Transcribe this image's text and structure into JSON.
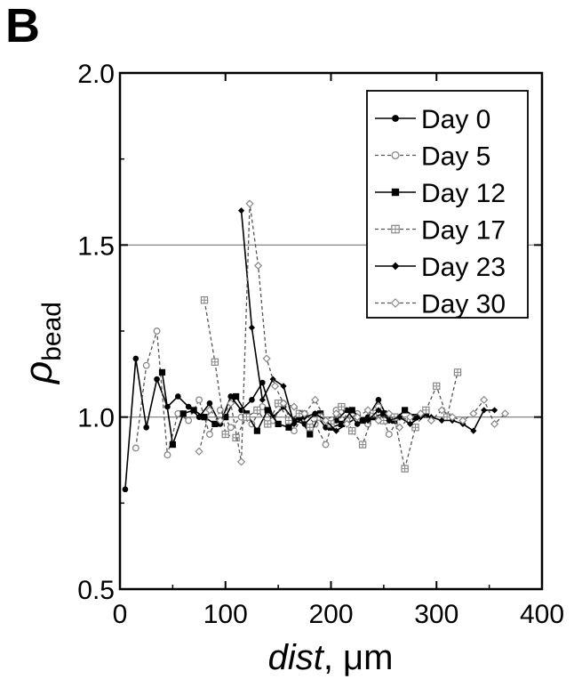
{
  "panel_label": "B",
  "chart_data": {
    "type": "line",
    "title": "",
    "xlabel_italic": "dist",
    "xlabel_suffix": ", μm",
    "ylabel_symbol": "ρ",
    "ylabel_subscript": "bead",
    "xlim": [
      0,
      400
    ],
    "ylim": [
      0.5,
      2.0
    ],
    "xticks": [
      0,
      100,
      200,
      300,
      400
    ],
    "yticks": [
      0.5,
      1.0,
      1.5,
      2.0
    ],
    "xtick_labels": [
      "0",
      "100",
      "200",
      "300",
      "400"
    ],
    "ytick_labels": [
      "0.5",
      "1.0",
      "1.5",
      "2.0"
    ],
    "reference_lines": [
      1.0,
      1.5
    ],
    "grid": false,
    "legend_position": "top-right",
    "series": [
      {
        "name": "Day 0",
        "marker": "filled-circle",
        "line": "solid",
        "x": [
          5,
          15,
          25,
          35,
          45,
          55,
          65,
          75,
          85,
          95,
          105,
          115,
          125,
          135,
          145,
          155,
          165,
          175,
          185,
          195,
          205,
          215,
          225,
          235,
          245,
          255,
          265
        ],
        "y": [
          0.79,
          1.17,
          0.97,
          1.11,
          1.03,
          1.06,
          1.03,
          1.0,
          1.04,
          0.98,
          1.06,
          1.02,
          1.05,
          1.1,
          1.0,
          1.03,
          0.99,
          0.98,
          1.01,
          0.97,
          0.99,
          1.02,
          0.98,
          1.0,
          1.05,
          0.99,
          1.0
        ]
      },
      {
        "name": "Day 5",
        "marker": "open-circle",
        "line": "dashed",
        "x": [
          15,
          25,
          35,
          45,
          55,
          65,
          75,
          85,
          95,
          105,
          115,
          125,
          135,
          145,
          155,
          165,
          175,
          185,
          195,
          205,
          215,
          225,
          235,
          245,
          255,
          265,
          275
        ],
        "y": [
          0.91,
          1.15,
          1.25,
          0.89,
          1.01,
          0.99,
          1.05,
          0.95,
          1.02,
          0.97,
          1.0,
          0.98,
          1.03,
          0.99,
          1.04,
          0.96,
          1.01,
          0.98,
          0.92,
          1.02,
          0.99,
          1.01,
          0.98,
          1.03,
          0.95,
          1.0,
          0.99
        ]
      },
      {
        "name": "Day 12",
        "marker": "filled-square",
        "line": "solid",
        "x": [
          40,
          50,
          60,
          70,
          80,
          90,
          100,
          110,
          120,
          130,
          140,
          150,
          160,
          170,
          180,
          190,
          200,
          210,
          220,
          230,
          240,
          250,
          260,
          270,
          280,
          290
        ],
        "y": [
          1.13,
          0.92,
          1.01,
          1.02,
          1.0,
          0.98,
          1.0,
          1.06,
          1.01,
          0.96,
          1.02,
          0.98,
          0.97,
          1.0,
          0.95,
          1.01,
          0.97,
          0.98,
          1.02,
          0.99,
          1.0,
          1.01,
          0.99,
          1.02,
          1.0,
          1.01
        ]
      },
      {
        "name": "Day 17",
        "marker": "open-square-cross",
        "line": "dashed",
        "x": [
          80,
          90,
          100,
          110,
          120,
          130,
          140,
          150,
          160,
          170,
          180,
          190,
          200,
          210,
          220,
          230,
          240,
          250,
          260,
          270,
          280,
          290,
          300,
          310,
          320
        ],
        "y": [
          1.34,
          1.16,
          0.95,
          0.94,
          1.0,
          1.02,
          0.98,
          1.04,
          0.99,
          1.01,
          0.97,
          1.0,
          0.98,
          1.03,
          0.96,
          0.92,
          1.01,
          0.99,
          1.0,
          0.85,
          0.97,
          1.02,
          1.09,
          1.0,
          1.13
        ]
      },
      {
        "name": "Day 23",
        "marker": "filled-diamond",
        "line": "solid",
        "x": [
          115,
          125,
          135,
          145,
          155,
          165,
          175,
          185,
          195,
          205,
          215,
          225,
          235,
          245,
          255,
          265,
          275,
          285,
          295,
          305,
          315,
          325,
          335,
          345,
          355
        ],
        "y": [
          1.6,
          1.26,
          1.05,
          1.11,
          1.09,
          0.98,
          1.0,
          1.01,
          0.99,
          0.96,
          0.98,
          1.0,
          0.99,
          1.02,
          0.99,
          1.0,
          0.98,
          1.0,
          1.0,
          0.99,
          0.99,
          0.98,
          0.96,
          1.02,
          1.02
        ]
      },
      {
        "name": "Day 30",
        "marker": "open-diamond",
        "line": "dashed",
        "x": [
          75,
          85,
          95,
          105,
          115,
          123,
          131,
          139,
          147,
          155,
          165,
          175,
          185,
          195,
          205,
          215,
          225,
          235,
          245,
          255,
          265,
          275,
          285,
          295,
          305,
          315,
          325,
          335,
          345,
          355,
          365
        ],
        "y": [
          0.9,
          1.02,
          0.99,
          1.04,
          0.87,
          1.62,
          1.44,
          1.17,
          1.09,
          1.04,
          1.03,
          1.01,
          1.05,
          0.99,
          1.01,
          0.98,
          1.0,
          1.02,
          0.99,
          1.01,
          0.97,
          1.0,
          1.01,
          0.99,
          1.02,
          1.0,
          0.99,
          1.01,
          1.05,
          0.98,
          1.01
        ]
      }
    ]
  }
}
